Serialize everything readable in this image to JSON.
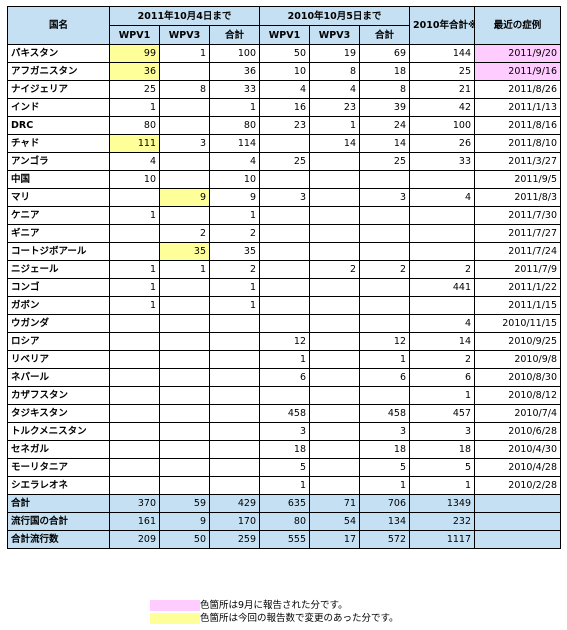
{
  "header": {
    "country": "国名",
    "period_2011": "2011年10月4日まで",
    "period_2010": "2010年10月5日まで",
    "total_2010": "2010年合計※",
    "latest_case": "最近の症例",
    "sub": [
      "WPV1",
      "WPV3",
      "合計",
      "WPV1",
      "WPV3",
      "合計"
    ]
  },
  "rows": [
    {
      "name": "パキスタン",
      "c": [
        "99",
        "1",
        "100",
        "50",
        "19",
        "69",
        "144",
        "2011/9/20"
      ]
    },
    {
      "name": "アフガニスタン",
      "c": [
        "36",
        "",
        "36",
        "10",
        "8",
        "18",
        "25",
        "2011/9/16"
      ]
    },
    {
      "name": "ナイジェリア",
      "c": [
        "25",
        "8",
        "33",
        "4",
        "4",
        "8",
        "21",
        "2011/8/26"
      ]
    },
    {
      "name": "インド",
      "c": [
        "1",
        "",
        "1",
        "16",
        "23",
        "39",
        "42",
        "2011/1/13"
      ]
    },
    {
      "name": "DRC",
      "c": [
        "80",
        "",
        "80",
        "23",
        "1",
        "24",
        "100",
        "2011/8/16"
      ]
    },
    {
      "name": "チャド",
      "c": [
        "111",
        "3",
        "114",
        "",
        "14",
        "14",
        "26",
        "2011/8/10"
      ]
    },
    {
      "name": "アンゴラ",
      "c": [
        "4",
        "",
        "4",
        "25",
        "",
        "25",
        "33",
        "2011/3/27"
      ]
    },
    {
      "name": "中国",
      "c": [
        "10",
        "",
        "10",
        "",
        "",
        "",
        "",
        "2011/9/5"
      ]
    },
    {
      "name": "マリ",
      "c": [
        "",
        "9",
        "9",
        "3",
        "",
        "3",
        "4",
        "2011/8/3"
      ]
    },
    {
      "name": "ケニア",
      "c": [
        "1",
        "",
        "1",
        "",
        "",
        "",
        "",
        "2011/7/30"
      ]
    },
    {
      "name": "ギニア",
      "c": [
        "",
        "2",
        "2",
        "",
        "",
        "",
        "",
        "2011/7/27"
      ]
    },
    {
      "name": "コートジボアール",
      "c": [
        "",
        "35",
        "35",
        "",
        "",
        "",
        "",
        "2011/7/24"
      ]
    },
    {
      "name": "ニジェール",
      "c": [
        "1",
        "1",
        "2",
        "",
        "2",
        "2",
        "2",
        "2011/7/9"
      ]
    },
    {
      "name": "コンゴ",
      "c": [
        "1",
        "",
        "1",
        "",
        "",
        "",
        "441",
        "2011/1/22"
      ]
    },
    {
      "name": "ガボン",
      "c": [
        "1",
        "",
        "1",
        "",
        "",
        "",
        "",
        "2011/1/15"
      ]
    },
    {
      "name": "ウガンダ",
      "c": [
        "",
        "",
        "",
        "",
        "",
        "",
        "4",
        "2010/11/15"
      ]
    },
    {
      "name": "ロシア",
      "c": [
        "",
        "",
        "",
        "12",
        "",
        "12",
        "14",
        "2010/9/25"
      ]
    },
    {
      "name": "リベリア",
      "c": [
        "",
        "",
        "",
        "1",
        "",
        "1",
        "2",
        "2010/9/8"
      ]
    },
    {
      "name": "ネパール",
      "c": [
        "",
        "",
        "",
        "6",
        "",
        "6",
        "6",
        "2010/8/30"
      ]
    },
    {
      "name": "カザフスタン",
      "c": [
        "",
        "",
        "",
        "",
        "",
        "",
        "1",
        "2010/8/12"
      ]
    },
    {
      "name": "タジキスタン",
      "c": [
        "",
        "",
        "",
        "458",
        "",
        "458",
        "457",
        "2010/7/4"
      ]
    },
    {
      "name": "トルクメニスタン",
      "c": [
        "",
        "",
        "",
        "3",
        "",
        "3",
        "3",
        "2010/6/28"
      ]
    },
    {
      "name": "セネガル",
      "c": [
        "",
        "",
        "",
        "18",
        "",
        "18",
        "18",
        "2010/4/30"
      ]
    },
    {
      "name": "モーリタニア",
      "c": [
        "",
        "",
        "",
        "5",
        "",
        "5",
        "5",
        "2010/4/28"
      ]
    },
    {
      "name": "シエラレオネ",
      "c": [
        "",
        "",
        "",
        "1",
        "",
        "1",
        "1",
        "2010/2/28"
      ]
    }
  ],
  "highlights": {
    "yellow": [
      [
        0,
        0
      ],
      [
        1,
        0
      ],
      [
        5,
        0
      ],
      [
        8,
        1
      ],
      [
        11,
        1
      ]
    ],
    "pink": [
      [
        0,
        7
      ],
      [
        1,
        7
      ]
    ]
  },
  "totals": [
    {
      "name": "合計",
      "c": [
        "370",
        "59",
        "429",
        "635",
        "71",
        "706",
        "1349",
        ""
      ]
    },
    {
      "name": "流行国の合計",
      "c": [
        "161",
        "9",
        "170",
        "80",
        "54",
        "134",
        "232",
        ""
      ]
    },
    {
      "name": "合計流行数",
      "c": [
        "209",
        "50",
        "259",
        "555",
        "17",
        "572",
        "1117",
        ""
      ]
    }
  ],
  "legend": {
    "pink_text": "色箇所は9月に報告された分です。",
    "yellow_text": "色箇所は今回の報告数で変更のあった分です。"
  },
  "colors": {
    "header_bg": "#c5e0f2",
    "pink": "#ffccff",
    "yellow": "#ffff99"
  }
}
